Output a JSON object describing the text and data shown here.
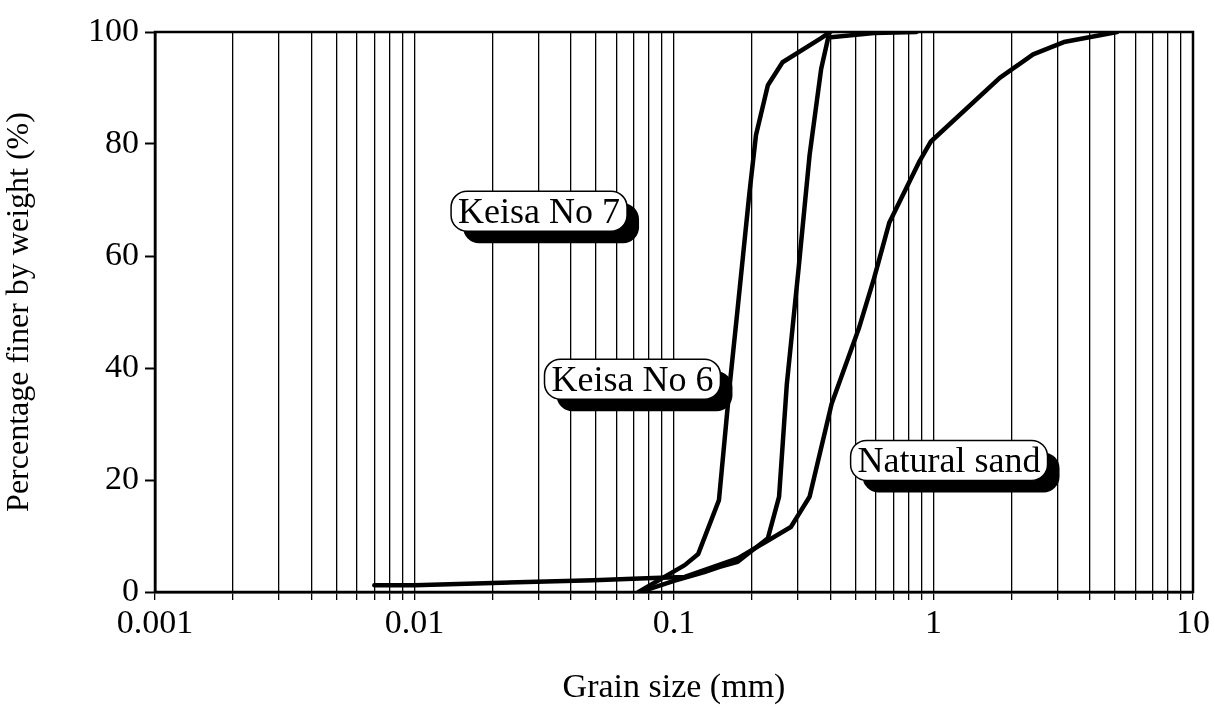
{
  "chart_data": {
    "type": "line",
    "xlabel": "Grain size (mm)",
    "ylabel": "Percentage finer by weight (%)",
    "log": "x",
    "xlim": [
      0.001,
      10
    ],
    "ylim": [
      0,
      100
    ],
    "xticks": [
      0.001,
      {
        "value": 0.002,
        "label": null
      },
      {
        "value": 0.003,
        "label": null
      },
      {
        "value": 0.004,
        "label": null
      },
      {
        "value": 0.005,
        "label": null
      },
      {
        "value": 0.006,
        "label": null
      },
      {
        "value": 0.007,
        "label": null
      },
      {
        "value": 0.008,
        "label": null
      },
      {
        "value": 0.009,
        "label": null
      },
      0.01,
      {
        "value": 0.02,
        "label": null
      },
      {
        "value": 0.03,
        "label": null
      },
      {
        "value": 0.04,
        "label": null
      },
      {
        "value": 0.05,
        "label": null
      },
      {
        "value": 0.06,
        "label": null
      },
      {
        "value": 0.07,
        "label": null
      },
      {
        "value": 0.08,
        "label": null
      },
      {
        "value": 0.09,
        "label": null
      },
      0.1,
      {
        "value": 0.2,
        "label": null
      },
      {
        "value": 0.3,
        "label": null
      },
      {
        "value": 0.4,
        "label": null
      },
      {
        "value": 0.5,
        "label": null
      },
      {
        "value": 0.6,
        "label": null
      },
      {
        "value": 0.7,
        "label": null
      },
      {
        "value": 0.8,
        "label": null
      },
      {
        "value": 0.9,
        "label": null
      },
      1,
      {
        "value": 2,
        "label": null
      },
      {
        "value": 3,
        "label": null
      },
      {
        "value": 4,
        "label": null
      },
      {
        "value": 5,
        "label": null
      },
      {
        "value": 6,
        "label": null
      },
      {
        "value": 7,
        "label": null
      },
      {
        "value": 8,
        "label": null
      },
      {
        "value": 9,
        "label": null
      },
      10
    ],
    "yticks": [
      0,
      20,
      40,
      60,
      80,
      100
    ],
    "grid": "x",
    "marker": "none",
    "line_style": "solid",
    "series": [
      {
        "name": "Keisa No 7",
        "color": "#000000",
        "x": [
          0.073,
          0.11,
          0.124,
          0.149,
          0.164,
          0.176,
          0.195,
          0.207,
          0.23,
          0.262,
          0.369,
          0.4
        ],
        "values": [
          0,
          4.8,
          6.8,
          16.4,
          37,
          50.7,
          71,
          81.6,
          90.5,
          94.6,
          98.9,
          100
        ]
      },
      {
        "name": "Keisa No 6",
        "color": "#000000",
        "x": [
          0.075,
          0.08,
          0.1,
          0.13,
          0.15,
          0.176,
          0.23,
          0.254,
          0.272,
          0.302,
          0.333,
          0.369,
          0.393,
          0.59,
          0.86
        ],
        "values": [
          0,
          0.5,
          2,
          3.5,
          4.5,
          5.4,
          9.6,
          17,
          37,
          57.7,
          78,
          93.4,
          99,
          99.8,
          100
        ]
      },
      {
        "name": "Natural sand",
        "color": "#000000",
        "x": [
          0.007,
          0.01,
          0.02,
          0.049,
          0.083,
          0.11,
          0.176,
          0.282,
          0.333,
          0.405,
          0.515,
          0.59,
          0.676,
          0.885,
          0.975,
          1.8,
          2.42,
          3.18,
          5.1
        ],
        "values": [
          1.2,
          1.2,
          1.6,
          2.1,
          2.5,
          2.7,
          6,
          11.6,
          17,
          33.6,
          47,
          56,
          66,
          77,
          80.4,
          91.8,
          96,
          98.2,
          100
        ]
      }
    ]
  }
}
